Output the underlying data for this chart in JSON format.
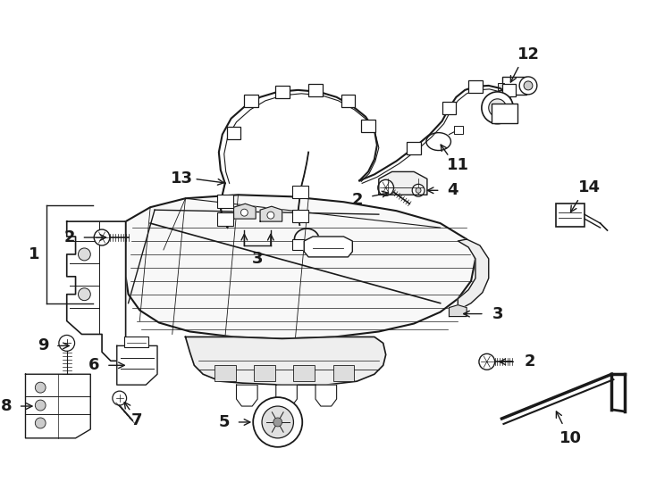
{
  "background_color": "#ffffff",
  "line_color": "#1a1a1a",
  "figsize": [
    7.34,
    5.4
  ],
  "dpi": 100,
  "label_fontsize": 13,
  "label_fontweight": "bold"
}
